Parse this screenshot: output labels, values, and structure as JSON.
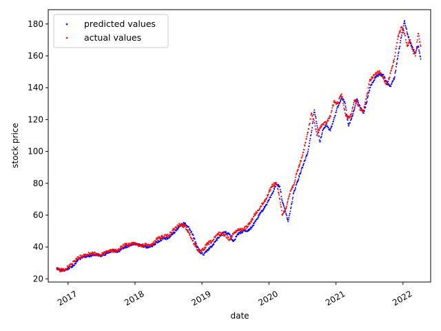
{
  "chart_data": {
    "type": "scatter",
    "title": "",
    "xlabel": "date",
    "ylabel": "stock price",
    "xlim": [
      "2016-09-15",
      "2022-06-01"
    ],
    "ylim": [
      18,
      189
    ],
    "x_ticks": [
      {
        "date": "2017-01-01",
        "label": "2017"
      },
      {
        "date": "2018-01-01",
        "label": "2018"
      },
      {
        "date": "2019-01-01",
        "label": "2019"
      },
      {
        "date": "2020-01-01",
        "label": "2020"
      },
      {
        "date": "2021-01-01",
        "label": "2021"
      },
      {
        "date": "2022-01-01",
        "label": "2022"
      }
    ],
    "y_ticks": [
      20,
      40,
      60,
      80,
      100,
      120,
      140,
      160,
      180
    ],
    "grid": false,
    "legend_position": "top-left",
    "series": [
      {
        "name": "predicted values",
        "color": "#0000ff",
        "points": [
          [
            "2016-11-01",
            26.8
          ],
          [
            "2016-11-20",
            25.8
          ],
          [
            "2016-12-10",
            25.4
          ],
          [
            "2017-01-05",
            26.5
          ],
          [
            "2017-02-01",
            28.5
          ],
          [
            "2017-03-01",
            32.5
          ],
          [
            "2017-04-01",
            33.8
          ],
          [
            "2017-05-01",
            34.5
          ],
          [
            "2017-06-01",
            35.5
          ],
          [
            "2017-07-01",
            34.5
          ],
          [
            "2017-08-01",
            36.0
          ],
          [
            "2017-09-01",
            38.0
          ],
          [
            "2017-10-01",
            37.0
          ],
          [
            "2017-11-01",
            39.5
          ],
          [
            "2017-12-01",
            41.0
          ],
          [
            "2018-01-01",
            42.0
          ],
          [
            "2018-02-01",
            41.5
          ],
          [
            "2018-03-01",
            40.0
          ],
          [
            "2018-04-01",
            40.5
          ],
          [
            "2018-05-01",
            43.0
          ],
          [
            "2018-06-01",
            45.0
          ],
          [
            "2018-07-01",
            45.5
          ],
          [
            "2018-08-01",
            49.0
          ],
          [
            "2018-09-01",
            53.0
          ],
          [
            "2018-10-01",
            55.0
          ],
          [
            "2018-10-20",
            52.5
          ],
          [
            "2018-11-10",
            48.0
          ],
          [
            "2018-12-01",
            42.0
          ],
          [
            "2018-12-20",
            37.0
          ],
          [
            "2019-01-10",
            35.0
          ],
          [
            "2019-02-01",
            38.0
          ],
          [
            "2019-03-01",
            41.0
          ],
          [
            "2019-04-01",
            46.0
          ],
          [
            "2019-05-01",
            49.5
          ],
          [
            "2019-06-01",
            48.0
          ],
          [
            "2019-06-20",
            43.5
          ],
          [
            "2019-07-15",
            48.0
          ],
          [
            "2019-08-15",
            50.0
          ],
          [
            "2019-09-15",
            50.5
          ],
          [
            "2019-10-15",
            55.0
          ],
          [
            "2019-11-15",
            61.0
          ],
          [
            "2019-12-15",
            66.0
          ],
          [
            "2020-01-15",
            72.5
          ],
          [
            "2020-02-10",
            79.5
          ],
          [
            "2020-03-01",
            78.0
          ],
          [
            "2020-03-15",
            68.0
          ],
          [
            "2020-04-01",
            62.0
          ],
          [
            "2020-04-15",
            56.0
          ],
          [
            "2020-05-01",
            65.0
          ],
          [
            "2020-05-15",
            74.0
          ],
          [
            "2020-06-01",
            80.0
          ],
          [
            "2020-07-01",
            90.0
          ],
          [
            "2020-08-01",
            100.0
          ],
          [
            "2020-08-20",
            112.0
          ],
          [
            "2020-09-05",
            126.0
          ],
          [
            "2020-09-20",
            116.0
          ],
          [
            "2020-10-05",
            106.0
          ],
          [
            "2020-10-20",
            113.0
          ],
          [
            "2020-11-10",
            117.0
          ],
          [
            "2020-12-01",
            113.0
          ],
          [
            "2020-12-20",
            120.0
          ],
          [
            "2021-01-10",
            128.0
          ],
          [
            "2021-02-01",
            134.0
          ],
          [
            "2021-02-20",
            130.0
          ],
          [
            "2021-03-10",
            116.0
          ],
          [
            "2021-03-25",
            120.0
          ],
          [
            "2021-04-10",
            126.0
          ],
          [
            "2021-04-25",
            133.0
          ],
          [
            "2021-05-15",
            127.0
          ],
          [
            "2021-06-01",
            124.0
          ],
          [
            "2021-06-15",
            130.0
          ],
          [
            "2021-07-05",
            140.0
          ],
          [
            "2021-08-01",
            146.0
          ],
          [
            "2021-08-25",
            148.0
          ],
          [
            "2021-09-15",
            148.0
          ],
          [
            "2021-10-05",
            143.0
          ],
          [
            "2021-10-25",
            141.0
          ],
          [
            "2021-11-15",
            146.0
          ],
          [
            "2021-12-05",
            160.0
          ],
          [
            "2021-12-25",
            173.0
          ],
          [
            "2022-01-10",
            182.0
          ],
          [
            "2022-01-25",
            174.0
          ],
          [
            "2022-02-10",
            168.0
          ],
          [
            "2022-02-25",
            164.0
          ],
          [
            "2022-03-10",
            162.0
          ],
          [
            "2022-03-25",
            166.0
          ],
          [
            "2022-04-08",
            158.0
          ]
        ]
      },
      {
        "name": "actual values",
        "color": "#ff0000",
        "points": [
          [
            "2016-11-01",
            26.2
          ],
          [
            "2016-11-20",
            25.2
          ],
          [
            "2016-12-10",
            26.0
          ],
          [
            "2017-01-05",
            27.5
          ],
          [
            "2017-02-01",
            31.0
          ],
          [
            "2017-03-01",
            33.5
          ],
          [
            "2017-04-01",
            34.5
          ],
          [
            "2017-05-01",
            36.0
          ],
          [
            "2017-06-01",
            35.5
          ],
          [
            "2017-07-01",
            35.0
          ],
          [
            "2017-08-01",
            37.5
          ],
          [
            "2017-09-01",
            37.5
          ],
          [
            "2017-10-01",
            38.0
          ],
          [
            "2017-11-01",
            41.0
          ],
          [
            "2017-12-01",
            41.5
          ],
          [
            "2018-01-01",
            42.5
          ],
          [
            "2018-02-01",
            40.5
          ],
          [
            "2018-03-01",
            41.5
          ],
          [
            "2018-04-01",
            41.0
          ],
          [
            "2018-05-01",
            45.0
          ],
          [
            "2018-06-01",
            46.5
          ],
          [
            "2018-07-01",
            47.0
          ],
          [
            "2018-08-01",
            51.0
          ],
          [
            "2018-09-01",
            54.0
          ],
          [
            "2018-10-01",
            53.0
          ],
          [
            "2018-10-20",
            49.5
          ],
          [
            "2018-11-10",
            44.0
          ],
          [
            "2018-12-01",
            40.0
          ],
          [
            "2018-12-20",
            36.5
          ],
          [
            "2019-01-10",
            38.5
          ],
          [
            "2019-02-01",
            42.0
          ],
          [
            "2019-03-01",
            44.0
          ],
          [
            "2019-04-01",
            48.5
          ],
          [
            "2019-05-01",
            48.0
          ],
          [
            "2019-06-01",
            45.0
          ],
          [
            "2019-06-20",
            48.0
          ],
          [
            "2019-07-15",
            50.5
          ],
          [
            "2019-08-15",
            51.0
          ],
          [
            "2019-09-15",
            54.0
          ],
          [
            "2019-10-15",
            60.0
          ],
          [
            "2019-11-15",
            65.0
          ],
          [
            "2019-12-15",
            70.0
          ],
          [
            "2020-01-15",
            78.0
          ],
          [
            "2020-02-10",
            80.5
          ],
          [
            "2020-03-01",
            70.0
          ],
          [
            "2020-03-15",
            60.0
          ],
          [
            "2020-04-01",
            64.0
          ],
          [
            "2020-04-15",
            70.0
          ],
          [
            "2020-05-01",
            76.0
          ],
          [
            "2020-05-15",
            79.0
          ],
          [
            "2020-06-01",
            86.0
          ],
          [
            "2020-07-01",
            97.0
          ],
          [
            "2020-08-01",
            112.0
          ],
          [
            "2020-08-20",
            124.0
          ],
          [
            "2020-09-05",
            118.0
          ],
          [
            "2020-09-20",
            110.0
          ],
          [
            "2020-10-05",
            115.0
          ],
          [
            "2020-10-20",
            117.0
          ],
          [
            "2020-11-10",
            118.0
          ],
          [
            "2020-12-01",
            122.0
          ],
          [
            "2020-12-20",
            131.0
          ],
          [
            "2021-01-10",
            130.0
          ],
          [
            "2021-02-01",
            136.0
          ],
          [
            "2021-02-20",
            124.0
          ],
          [
            "2021-03-10",
            121.0
          ],
          [
            "2021-03-25",
            123.0
          ],
          [
            "2021-04-10",
            132.0
          ],
          [
            "2021-04-25",
            131.0
          ],
          [
            "2021-05-15",
            126.0
          ],
          [
            "2021-06-01",
            126.0
          ],
          [
            "2021-06-15",
            133.0
          ],
          [
            "2021-07-05",
            145.0
          ],
          [
            "2021-08-01",
            148.0
          ],
          [
            "2021-08-25",
            150.0
          ],
          [
            "2021-09-15",
            146.0
          ],
          [
            "2021-10-05",
            142.0
          ],
          [
            "2021-10-25",
            149.0
          ],
          [
            "2021-11-15",
            158.0
          ],
          [
            "2021-12-05",
            172.0
          ],
          [
            "2021-12-25",
            178.0
          ],
          [
            "2022-01-10",
            174.0
          ],
          [
            "2022-01-25",
            166.0
          ],
          [
            "2022-02-10",
            170.0
          ],
          [
            "2022-02-25",
            163.0
          ],
          [
            "2022-03-10",
            160.0
          ],
          [
            "2022-03-25",
            174.0
          ],
          [
            "2022-04-08",
            166.0
          ]
        ]
      }
    ]
  }
}
